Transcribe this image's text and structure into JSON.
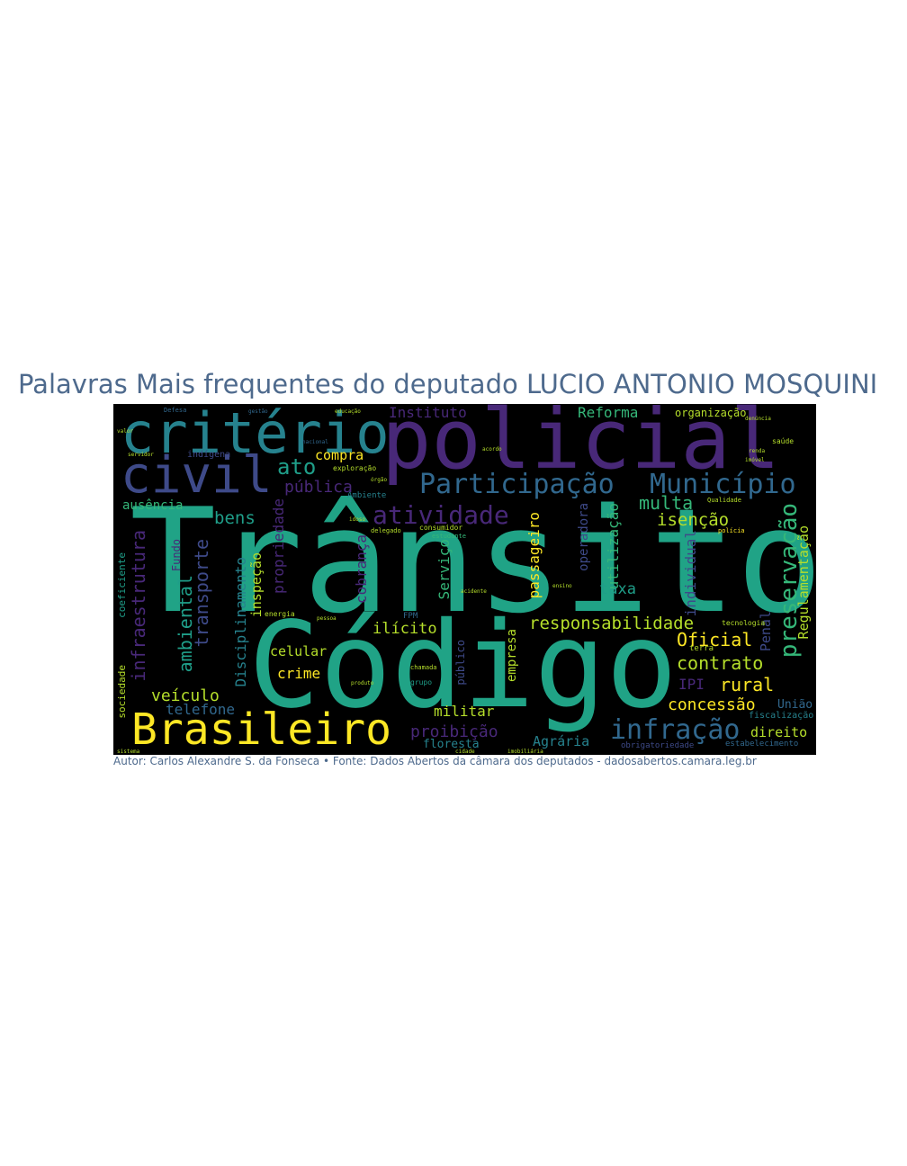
{
  "title": "Palavras Mais frequentes do deputado LUCIO ANTONIO MOSQUINI",
  "caption": "Autor: Carlos Alexandre S. da Fonseca • Fonte: Dados Abertos da câmara dos deputados - dadosabertos.camara.leg.br",
  "colors": {
    "text": "#4e6a8d",
    "background": "#000000",
    "yellow": "#fde725",
    "lime": "#b5de2b",
    "green": "#35b779",
    "teal": "#1f9e89",
    "cyan": "#26828e",
    "blue": "#31688e",
    "indigo": "#3e4a89",
    "purple": "#482878",
    "dark": "#440154"
  },
  "words": {
    "transito": "Trânsito",
    "codigo": "Código",
    "policial": "policial",
    "criterio": "critério",
    "brasileiro": "Brasileiro",
    "civil": "civil",
    "participacao": "Participação",
    "municipio": "Município",
    "atividade": "atividade",
    "infracao": "infração",
    "responsabilidade": "responsabilidade",
    "preservacao": "preservação",
    "infraestrutura": "infraestrutura",
    "ambiental": "ambiental",
    "transporte": "transporte",
    "disciplinamento": "Disciplinamento",
    "ato": "ato",
    "publica": "pública",
    "instituto": "Instituto",
    "reforma": "Reforma",
    "organizacao": "organização",
    "multa": "multa",
    "isencao": "isenção",
    "bens": "bens",
    "compra": "compra",
    "ausencia": "ausência",
    "propriedade": "propriedade",
    "inspecao": "inspeção",
    "cobranca": "cobrança",
    "servico": "Serviço",
    "passageiro": "passageiro",
    "operadora": "operadora",
    "utilizacao": "utilização",
    "individual": "individual",
    "taxa": "taxa",
    "regulamentacao": "Regulamentação",
    "oficial": "Oficial",
    "contrato": "contrato",
    "rural": "rural",
    "ipi": "IPI",
    "concessao": "concessão",
    "uniao": "União",
    "direito": "direito",
    "penal": "Penal",
    "ilicito": "ilícito",
    "celular": "celular",
    "crime": "crime",
    "veiculo": "veículo",
    "telefone": "telefone",
    "militar": "militar",
    "proibicao": "proibição",
    "floresta": "floresta",
    "agraria": "Agrária",
    "empresa": "empresa",
    "publico": "público",
    "fundo": "Fundo",
    "coeficiente": "coeficiente",
    "sociedade": "sociedade",
    "fiscalizacao": "fiscalização",
    "estabelecimento": "estabelecimento",
    "indigena": "indígena",
    "fpm": "FPM",
    "exploracao": "exploração",
    "ambiente": "Ambiente",
    "tecnologia": "tecnologia",
    "qualidade": "Qualidade",
    "saude": "saúde",
    "terra": "terra",
    "energia": "energia",
    "grupo": "grupo",
    "chamada": "chamada",
    "delegado": "delegado",
    "consumidor": "consumidor",
    "estudante": "estudante",
    "policia": "polícia",
    "defesa": "Defesa",
    "educacao": "educação",
    "gestao": "gestão",
    "nacional": "nacional",
    "acidente": "acidente",
    "denuncia": "denúncia",
    "servidor": "servidor",
    "renda": "renda",
    "pessoa": "pessoa",
    "sistema": "sistema",
    "produto": "produto",
    "orgao": "órgão",
    "imovel": "imóvel",
    "idoso": "idoso",
    "ensino": "ensino",
    "acordo": "acordo",
    "valor": "valor",
    "obrigatoriedade": "obrigatoriedade",
    "imobiliaria": "imobiliária",
    "cidade": "cidade"
  }
}
